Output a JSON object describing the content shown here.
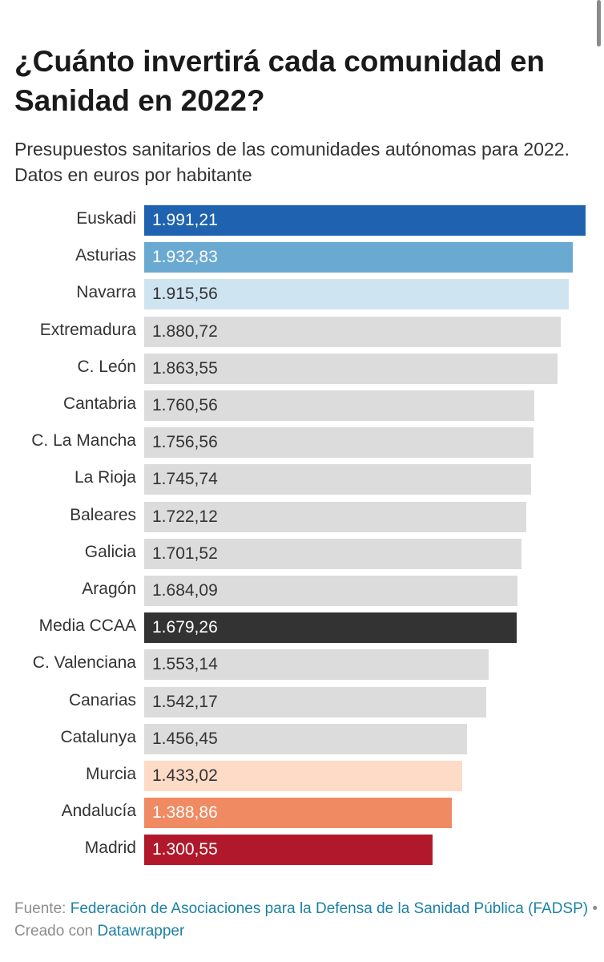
{
  "title": "¿Cuánto invertirá cada comunidad en Sanidad en 2022?",
  "subtitle": "Presupuestos sanitarios de las comunidades autónomas para 2022. Datos en euros por habitante",
  "chart_data": {
    "type": "bar",
    "orientation": "horizontal",
    "title": "¿Cuánto invertirá cada comunidad en Sanidad en 2022?",
    "subtitle": "Presupuestos sanitarios de las comunidades autónomas para 2022. Datos en euros por habitante",
    "xlabel": "",
    "ylabel": "",
    "xlim": [
      0,
      1991.21
    ],
    "grid": false,
    "legend": "none",
    "categories": [
      "Euskadi",
      "Asturias",
      "Navarra",
      "Extremadura",
      "C. León",
      "Cantabria",
      "C. La Mancha",
      "La Rioja",
      "Baleares",
      "Galicia",
      "Aragón",
      "Media CCAA",
      "C. Valenciana",
      "Canarias",
      "Catalunya",
      "Murcia",
      "Andalucía",
      "Madrid"
    ],
    "values": [
      1991.21,
      1932.83,
      1915.56,
      1880.72,
      1863.55,
      1760.56,
      1756.56,
      1745.74,
      1722.12,
      1701.52,
      1684.09,
      1679.26,
      1553.14,
      1542.17,
      1456.45,
      1433.02,
      1388.86,
      1300.55
    ],
    "value_labels": [
      "1.991,21",
      "1.932,83",
      "1.915,56",
      "1.880,72",
      "1.863,55",
      "1.760,56",
      "1.756,56",
      "1.745,74",
      "1.722,12",
      "1.701,52",
      "1.684,09",
      "1.679,26",
      "1.553,14",
      "1.542,17",
      "1.456,45",
      "1.433,02",
      "1.388,86",
      "1.300,55"
    ],
    "colors": [
      "#1f63b0",
      "#6aaad2",
      "#cfe4f1",
      "#dcdcdc",
      "#dcdcdc",
      "#dcdcdc",
      "#dcdcdc",
      "#dcdcdc",
      "#dcdcdc",
      "#dcdcdc",
      "#dcdcdc",
      "#333333",
      "#dcdcdc",
      "#dcdcdc",
      "#dcdcdc",
      "#fddbc7",
      "#ef8a62",
      "#b2182b"
    ],
    "value_text_colors": [
      "#ffffff",
      "#ffffff",
      "#333333",
      "#333333",
      "#333333",
      "#333333",
      "#333333",
      "#333333",
      "#333333",
      "#333333",
      "#333333",
      "#ffffff",
      "#333333",
      "#333333",
      "#333333",
      "#333333",
      "#ffffff",
      "#ffffff"
    ]
  },
  "footer": {
    "source_label": "Fuente:",
    "source_link": "Federación de Asociaciones para la Defensa de la Sanidad Pública (FADSP)",
    "separator": "•",
    "created_label": "Creado con",
    "created_link": "Datawrapper"
  }
}
